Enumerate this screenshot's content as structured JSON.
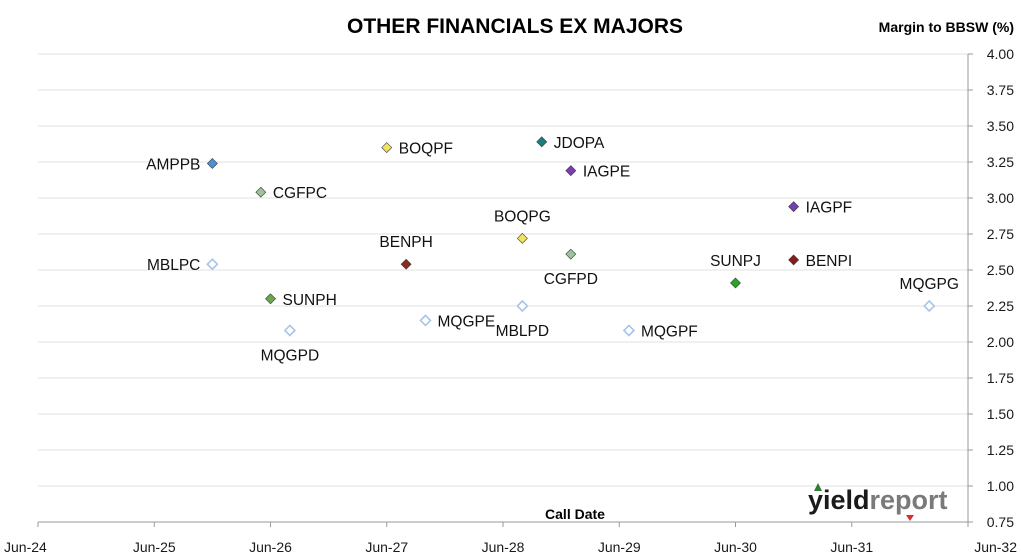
{
  "chart_data": {
    "type": "scatter",
    "title": "OTHER FINANCIALS EX MAJORS",
    "ylabel": "Margin to BBSW (%)",
    "xlabel": "Call Date",
    "x_ticks": [
      "Jun-24",
      "Jun-25",
      "Jun-26",
      "Jun-27",
      "Jun-28",
      "Jun-29",
      "Jun-30",
      "Jun-31",
      "Jun-32"
    ],
    "y_ticks": [
      "4.00",
      "3.75",
      "3.50",
      "3.25",
      "3.00",
      "2.75",
      "2.50",
      "2.25",
      "2.00",
      "1.75",
      "1.50",
      "1.25",
      "1.00",
      "0.75"
    ],
    "xlim": [
      "2024-06",
      "2032-06"
    ],
    "ylim": [
      0.75,
      4.0
    ],
    "grid": "horizontal",
    "points": [
      {
        "label": "AMPPB",
        "x": "2025-12",
        "y": 3.24,
        "color": "#4a8fd9",
        "hollow": false,
        "label_pos": "left"
      },
      {
        "label": "CGFPC",
        "x": "2026-05",
        "y": 3.04,
        "color": "#9bc49b",
        "hollow": false,
        "label_pos": "right"
      },
      {
        "label": "BOQPF",
        "x": "2027-06",
        "y": 3.35,
        "color": "#f2e35e",
        "hollow": false,
        "label_pos": "right"
      },
      {
        "label": "JDOPA",
        "x": "2028-10",
        "y": 3.39,
        "color": "#1b7f7a",
        "hollow": false,
        "label_pos": "right"
      },
      {
        "label": "IAGPE",
        "x": "2029-01",
        "y": 3.19,
        "color": "#7a3db8",
        "hollow": false,
        "label_pos": "right"
      },
      {
        "label": "IAGPF",
        "x": "2030-12",
        "y": 2.94,
        "color": "#7a3db8",
        "hollow": false,
        "label_pos": "right"
      },
      {
        "label": "BOQPG",
        "x": "2028-08",
        "y": 2.72,
        "color": "#f2e35e",
        "hollow": false,
        "label_pos": "above"
      },
      {
        "label": "CGFPD",
        "x": "2029-01",
        "y": 2.61,
        "color": "#9bc49b",
        "hollow": false,
        "label_pos": "below"
      },
      {
        "label": "BENPH",
        "x": "2027-08",
        "y": 2.54,
        "color": "#8b2a1e",
        "hollow": false,
        "label_pos": "above"
      },
      {
        "label": "MBLPC",
        "x": "2025-12",
        "y": 2.54,
        "color": "#a8c4e8",
        "hollow": true,
        "label_pos": "left"
      },
      {
        "label": "SUNPJ",
        "x": "2030-06",
        "y": 2.41,
        "color": "#22a822",
        "hollow": false,
        "label_pos": "above"
      },
      {
        "label": "BENPI",
        "x": "2030-12",
        "y": 2.57,
        "color": "#8b1a1a",
        "hollow": false,
        "label_pos": "right"
      },
      {
        "label": "MQGPG",
        "x": "2032-02",
        "y": 2.25,
        "color": "#a8c4e8",
        "hollow": true,
        "label_pos": "above"
      },
      {
        "label": "SUNPH",
        "x": "2026-06",
        "y": 2.3,
        "color": "#6aa84f",
        "hollow": false,
        "label_pos": "right"
      },
      {
        "label": "MQGPE",
        "x": "2027-10",
        "y": 2.15,
        "color": "#a8c4e8",
        "hollow": true,
        "label_pos": "right"
      },
      {
        "label": "MBLPD",
        "x": "2028-08",
        "y": 2.25,
        "color": "#a8c4e8",
        "hollow": true,
        "label_pos": "below"
      },
      {
        "label": "MQGPD",
        "x": "2026-08",
        "y": 2.08,
        "color": "#a8c4e8",
        "hollow": true,
        "label_pos": "below"
      },
      {
        "label": "MQGPF",
        "x": "2029-07",
        "y": 2.08,
        "color": "#a8c4e8",
        "hollow": true,
        "label_pos": "right"
      }
    ]
  },
  "logo": {
    "part1": "yield",
    "part2": "report"
  }
}
